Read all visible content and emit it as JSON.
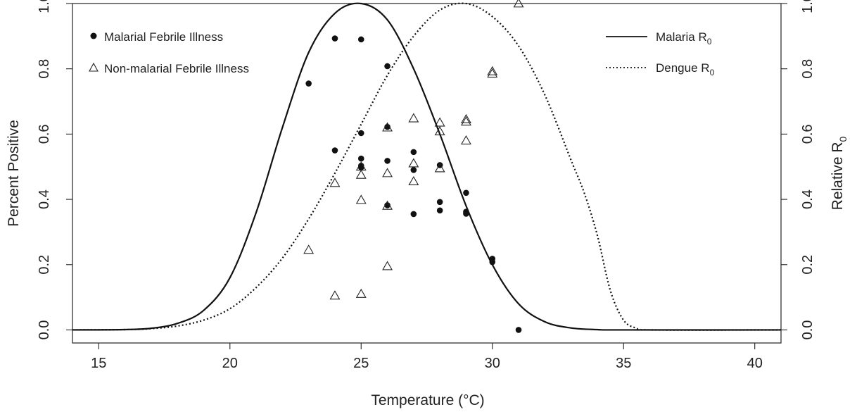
{
  "chart_data": {
    "type": "scatter",
    "title": "",
    "xlabel": "Temperature (°C)",
    "ylabel_left": "Percent Positive",
    "ylabel_right_base": "Relative R",
    "ylabel_right_sub": "0",
    "xlim": [
      14,
      41
    ],
    "ylim": [
      -0.04,
      1.0
    ],
    "ylim_right": [
      -0.04,
      1.0
    ],
    "x_ticks": [
      "15",
      "20",
      "25",
      "30",
      "35",
      "40"
    ],
    "x_tick_values": [
      15,
      20,
      25,
      30,
      35,
      40
    ],
    "y_ticks": [
      "0.0",
      "0.2",
      "0.4",
      "0.6",
      "0.8",
      "1.0"
    ],
    "y_tick_values": [
      0.0,
      0.2,
      0.4,
      0.6,
      0.8,
      1.0
    ],
    "grid": false,
    "legend_points": {
      "placement": "top-left",
      "entries": [
        {
          "label": "Malarial Febrile Illness",
          "marker": "filled-circle"
        },
        {
          "label": "Non-malarial Febrile Illness",
          "marker": "open-triangle"
        }
      ]
    },
    "legend_curves": {
      "placement": "top-right",
      "entries": [
        {
          "label_base": "Malaria R",
          "label_sub": "0",
          "linestyle": "solid"
        },
        {
          "label_base": "Dengue R",
          "label_sub": "0",
          "linestyle": "dotted"
        }
      ]
    },
    "series": [
      {
        "name": "Malarial Febrile Illness",
        "marker": "filled-circle",
        "x": [
          23,
          24,
          24,
          25,
          25,
          25,
          25,
          25,
          26,
          26,
          26,
          26,
          27,
          27,
          27,
          28,
          28,
          28,
          29,
          29,
          29,
          30,
          30,
          31
        ],
        "y": [
          0.755,
          0.893,
          0.55,
          0.89,
          0.603,
          0.525,
          0.503,
          0.498,
          0.808,
          0.622,
          0.518,
          0.382,
          0.545,
          0.49,
          0.355,
          0.505,
          0.392,
          0.366,
          0.42,
          0.362,
          0.356,
          0.218,
          0.208,
          0.0
        ]
      },
      {
        "name": "Non-malarial Febrile Illness",
        "marker": "open-triangle",
        "x": [
          23,
          24,
          24,
          25,
          25,
          25,
          25,
          26,
          26,
          26,
          26,
          27,
          27,
          27,
          28,
          28,
          28,
          29,
          29,
          29,
          30,
          30,
          31
        ],
        "y": [
          0.245,
          0.45,
          0.105,
          0.5,
          0.475,
          0.398,
          0.11,
          0.62,
          0.48,
          0.38,
          0.195,
          0.648,
          0.51,
          0.455,
          0.635,
          0.608,
          0.495,
          0.645,
          0.638,
          0.58,
          0.792,
          0.785,
          1.0
        ]
      },
      {
        "name": "Malaria R0",
        "type": "line",
        "linestyle": "solid",
        "x": [
          14,
          16,
          17,
          18,
          19,
          20,
          21,
          22,
          23,
          24,
          25,
          26,
          27,
          28,
          29,
          30,
          31,
          32,
          33,
          34,
          35,
          41
        ],
        "y": [
          0,
          0.001,
          0.005,
          0.02,
          0.06,
          0.16,
          0.36,
          0.62,
          0.85,
          0.97,
          1.0,
          0.95,
          0.8,
          0.6,
          0.38,
          0.2,
          0.08,
          0.025,
          0.006,
          0.001,
          0,
          0
        ]
      },
      {
        "name": "Dengue R0",
        "type": "line",
        "linestyle": "dotted",
        "x": [
          14,
          16,
          17,
          18,
          19,
          20,
          21,
          22,
          23,
          24,
          25,
          26,
          27,
          28,
          29,
          30,
          31,
          32,
          33,
          33.5,
          34,
          34.5,
          35,
          35.5,
          36,
          41
        ],
        "y": [
          0,
          0.001,
          0.004,
          0.012,
          0.03,
          0.065,
          0.13,
          0.22,
          0.34,
          0.48,
          0.63,
          0.78,
          0.9,
          0.98,
          1.0,
          0.96,
          0.87,
          0.72,
          0.52,
          0.42,
          0.29,
          0.12,
          0.03,
          0.005,
          0,
          0
        ]
      }
    ]
  }
}
